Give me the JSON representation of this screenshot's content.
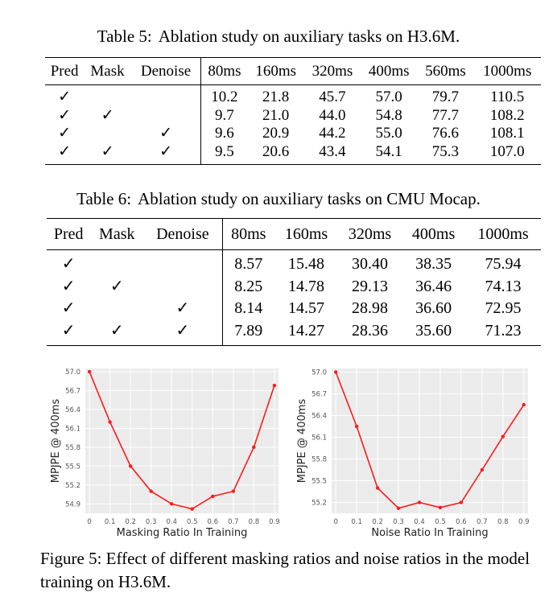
{
  "table5": {
    "label": "Table 5:",
    "caption": "Ablation study on auxiliary tasks on H3.6M.",
    "headers": [
      "Pred",
      "Mask",
      "Denoise",
      "80ms",
      "160ms",
      "320ms",
      "400ms",
      "560ms",
      "1000ms"
    ],
    "rows": [
      {
        "pred": "✓",
        "mask": "",
        "denoise": "",
        "values": [
          "10.2",
          "21.8",
          "45.7",
          "57.0",
          "79.7",
          "110.5"
        ]
      },
      {
        "pred": "✓",
        "mask": "✓",
        "denoise": "",
        "values": [
          "9.7",
          "21.0",
          "44.0",
          "54.8",
          "77.7",
          "108.2"
        ]
      },
      {
        "pred": "✓",
        "mask": "",
        "denoise": "✓",
        "values": [
          "9.6",
          "20.9",
          "44.2",
          "55.0",
          "76.6",
          "108.1"
        ]
      },
      {
        "pred": "✓",
        "mask": "✓",
        "denoise": "✓",
        "values": [
          "9.5",
          "20.6",
          "43.4",
          "54.1",
          "75.3",
          "107.0"
        ]
      }
    ]
  },
  "table6": {
    "label": "Table 6:",
    "caption": "Ablation study on auxiliary tasks on CMU Mocap.",
    "headers": [
      "Pred",
      "Mask",
      "Denoise",
      "80ms",
      "160ms",
      "320ms",
      "400ms",
      "1000ms"
    ],
    "rows": [
      {
        "pred": "✓",
        "mask": "",
        "denoise": "",
        "values": [
          "8.57",
          "15.48",
          "30.40",
          "38.35",
          "75.94"
        ]
      },
      {
        "pred": "✓",
        "mask": "✓",
        "denoise": "",
        "values": [
          "8.25",
          "14.78",
          "29.13",
          "36.46",
          "74.13"
        ]
      },
      {
        "pred": "✓",
        "mask": "",
        "denoise": "✓",
        "values": [
          "8.14",
          "14.57",
          "28.98",
          "36.60",
          "72.95"
        ]
      },
      {
        "pred": "✓",
        "mask": "✓",
        "denoise": "✓",
        "values": [
          "7.89",
          "14.27",
          "28.36",
          "35.60",
          "71.23"
        ]
      }
    ]
  },
  "figure": {
    "label": "Figure 5:",
    "caption": "Effect of different masking ratios and noise ratios in the model training on H3.6M."
  },
  "chart_data": [
    {
      "type": "line",
      "xlabel": "Masking Ratio In Training",
      "ylabel": "MPJPE @ 400ms",
      "x": [
        0,
        0.1,
        0.2,
        0.3,
        0.4,
        0.5,
        0.6,
        0.7,
        0.8,
        0.9
      ],
      "values": [
        57.0,
        56.2,
        55.5,
        55.1,
        54.9,
        54.82,
        55.02,
        55.1,
        55.8,
        56.78
      ],
      "xticks": [
        "0",
        "0.1",
        "0.2",
        "0.3",
        "0.4",
        "0.5",
        "0.6",
        "0.7",
        "0.8",
        "0.9"
      ],
      "yticks": [
        "54.9",
        "55.2",
        "55.5",
        "55.8",
        "56.1",
        "56.4",
        "56.7",
        "57.0"
      ],
      "ylim": [
        54.75,
        57.05
      ],
      "grid": true,
      "line_color": "#ff1a1a",
      "background": "#ebebeb"
    },
    {
      "type": "line",
      "xlabel": "Noise Ratio In Training",
      "ylabel": "MPJPE @ 400ms",
      "x": [
        0,
        0.1,
        0.2,
        0.3,
        0.4,
        0.5,
        0.6,
        0.7,
        0.8,
        0.9
      ],
      "values": [
        57.0,
        56.25,
        55.4,
        55.12,
        55.2,
        55.13,
        55.2,
        55.65,
        56.11,
        56.55
      ],
      "xticks": [
        "0",
        "0.1",
        "0.2",
        "0.3",
        "0.4",
        "0.5",
        "0.6",
        "0.7",
        "0.8",
        "0.9"
      ],
      "yticks": [
        "55.2",
        "55.5",
        "55.8",
        "56.1",
        "56.4",
        "56.7",
        "57.0"
      ],
      "ylim": [
        55.05,
        57.05
      ],
      "grid": true,
      "line_color": "#ff1a1a",
      "background": "#ebebeb"
    }
  ]
}
